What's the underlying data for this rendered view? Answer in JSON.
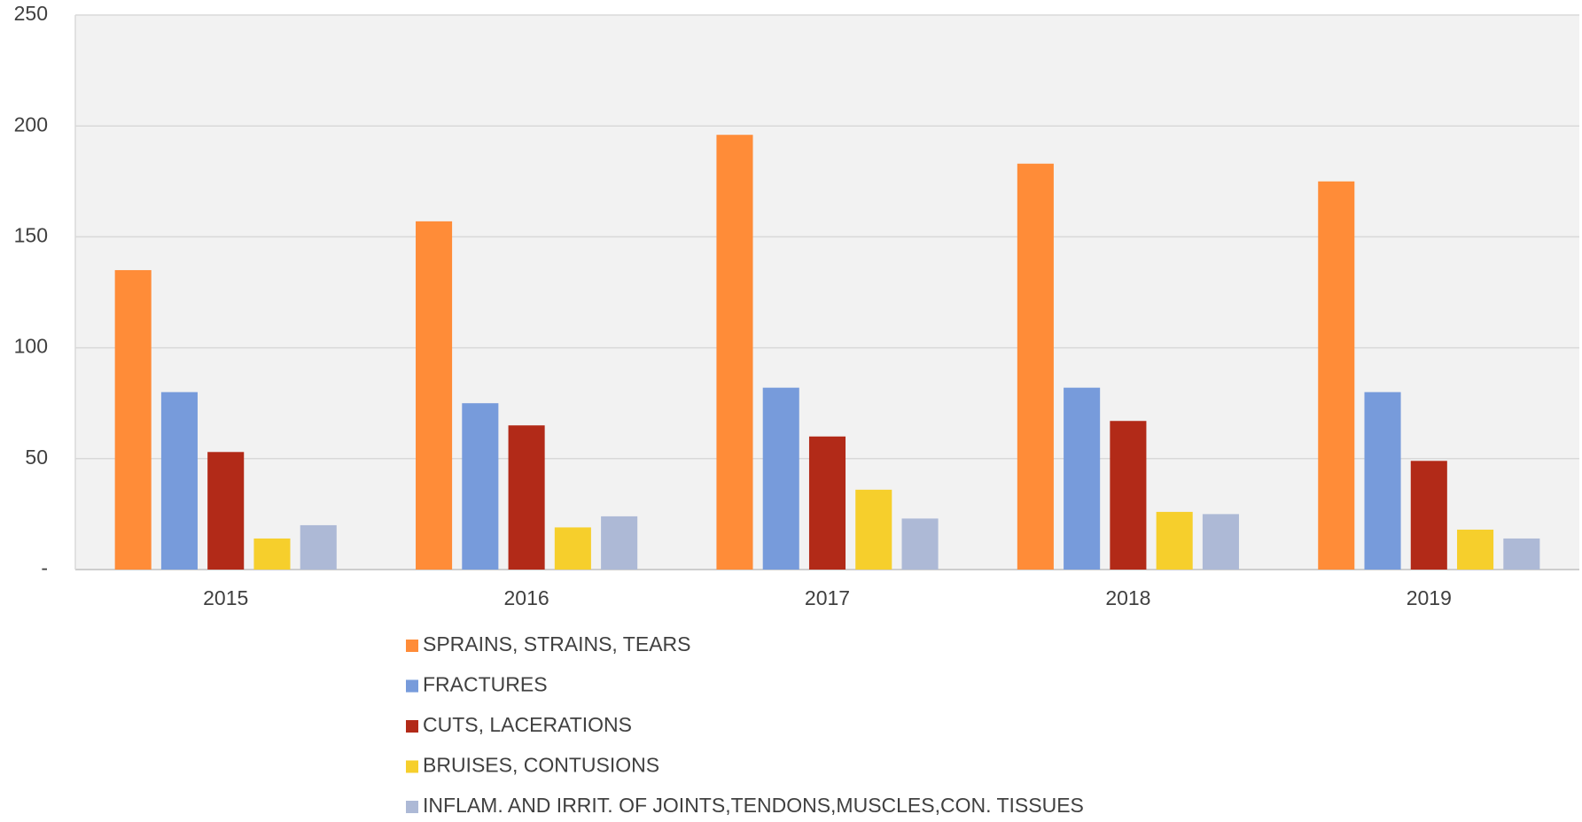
{
  "chart_data": {
    "type": "bar",
    "categories": [
      "2015",
      "2016",
      "2017",
      "2018",
      "2019"
    ],
    "series": [
      {
        "name": "SPRAINS, STRAINS, TEARS",
        "color": "#ff8c38",
        "values": [
          135,
          157,
          196,
          183,
          175
        ]
      },
      {
        "name": "FRACTURES",
        "color": "#779bdb",
        "values": [
          80,
          75,
          82,
          82,
          80
        ]
      },
      {
        "name": "CUTS, LACERATIONS",
        "color": "#b22a18",
        "values": [
          53,
          65,
          60,
          67,
          49
        ]
      },
      {
        "name": "BRUISES, CONTUSIONS",
        "color": "#f6cf2c",
        "values": [
          14,
          19,
          36,
          26,
          18
        ]
      },
      {
        "name": "INFLAM. AND IRRIT. OF JOINTS,TENDONS,MUSCLES,CON. TISSUES",
        "color": "#adb9d6",
        "values": [
          20,
          24,
          23,
          25,
          14
        ]
      }
    ],
    "ylim": [
      0,
      250
    ],
    "yticks": [
      {
        "value": 0,
        "label": "-"
      },
      50,
      100,
      150,
      200,
      250
    ],
    "grid": true,
    "legend": "bottom"
  }
}
